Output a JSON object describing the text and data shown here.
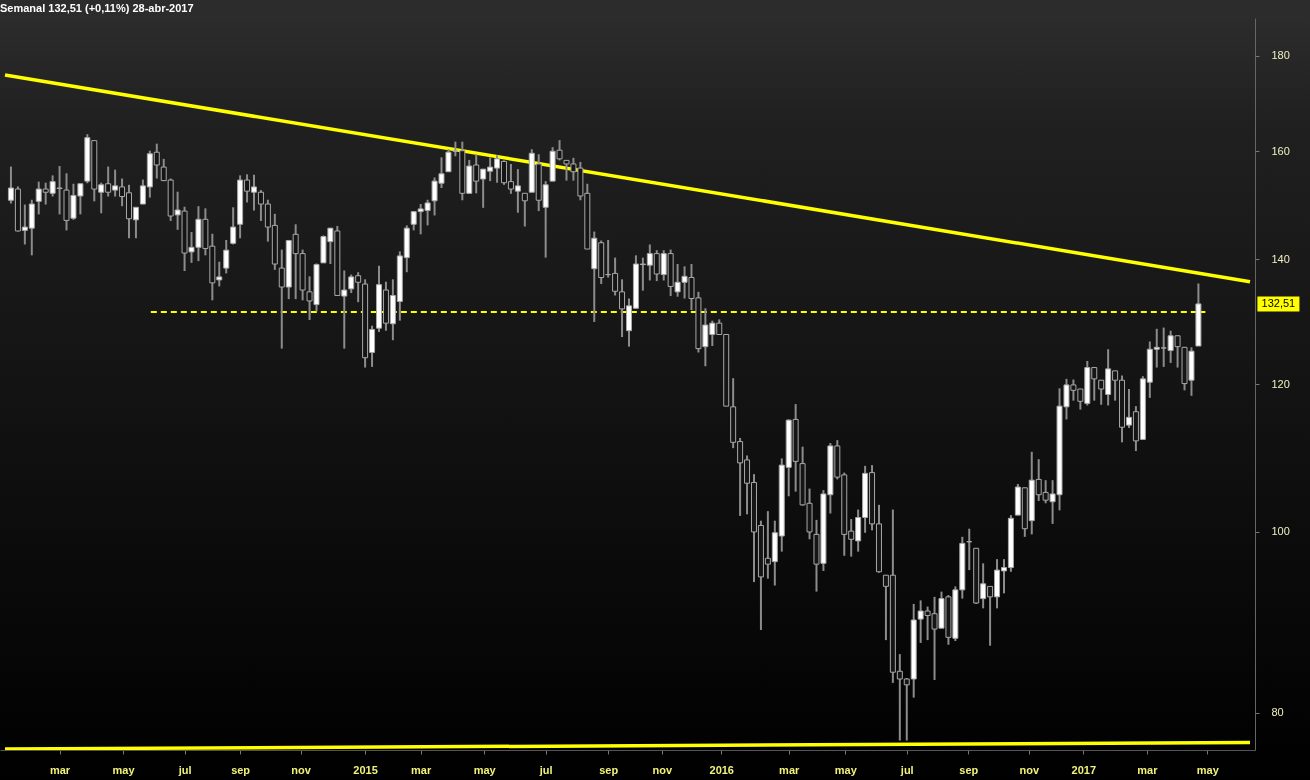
{
  "chart_data": {
    "type": "candlestick",
    "title": "Semanal   132,51 (+0,11%)   28-abr-2017",
    "log": true,
    "xlim": [
      "2014-01-11",
      "2017-06-19"
    ],
    "ylim": [
      76.4,
      188.6
    ],
    "yticks": [
      80,
      100,
      120,
      140,
      160,
      180
    ],
    "xticks": [
      {
        "value": "2014-03-07",
        "label": "mar"
      },
      {
        "value": "2014-05-10",
        "label": "may"
      },
      {
        "value": "2014-07-11",
        "label": "jul"
      },
      {
        "value": "2014-09-05",
        "label": "sep"
      },
      {
        "value": "2014-11-05",
        "label": "nov"
      },
      {
        "value": "2015-01-09",
        "label": "2015"
      },
      {
        "value": "2015-03-06",
        "label": "mar"
      },
      {
        "value": "2015-05-09",
        "label": "may"
      },
      {
        "value": "2015-07-10",
        "label": "jul"
      },
      {
        "value": "2015-09-11",
        "label": "sep"
      },
      {
        "value": "2015-11-04",
        "label": "nov"
      },
      {
        "value": "2016-01-03",
        "label": "2016"
      },
      {
        "value": "2016-03-11",
        "label": "mar"
      },
      {
        "value": "2016-05-07",
        "label": "may"
      },
      {
        "value": "2016-07-08",
        "label": "jul"
      },
      {
        "value": "2016-09-08",
        "label": "sep"
      },
      {
        "value": "2016-11-08",
        "label": "nov"
      },
      {
        "value": "2017-01-02",
        "label": "2017"
      },
      {
        "value": "2017-03-07",
        "label": "mar"
      },
      {
        "value": "2017-05-07",
        "label": "may"
      }
    ],
    "x": [
      "2014-01-17",
      "2014-01-24",
      "2014-01-31",
      "2014-02-07",
      "2014-02-14",
      "2014-02-21",
      "2014-02-28",
      "2014-03-07",
      "2014-03-14",
      "2014-03-21",
      "2014-03-28",
      "2014-04-04",
      "2014-04-11",
      "2014-04-18",
      "2014-04-25",
      "2014-05-02",
      "2014-05-09",
      "2014-05-16",
      "2014-05-23",
      "2014-05-30",
      "2014-06-06",
      "2014-06-13",
      "2014-06-20",
      "2014-06-27",
      "2014-07-04",
      "2014-07-11",
      "2014-07-18",
      "2014-07-25",
      "2014-08-01",
      "2014-08-08",
      "2014-08-15",
      "2014-08-22",
      "2014-08-29",
      "2014-09-05",
      "2014-09-12",
      "2014-09-19",
      "2014-09-26",
      "2014-10-03",
      "2014-10-10",
      "2014-10-17",
      "2014-10-24",
      "2014-10-31",
      "2014-11-07",
      "2014-11-14",
      "2014-11-21",
      "2014-11-28",
      "2014-12-05",
      "2014-12-12",
      "2014-12-19",
      "2014-12-26",
      "2015-01-02",
      "2015-01-09",
      "2015-01-16",
      "2015-01-23",
      "2015-01-30",
      "2015-02-06",
      "2015-02-13",
      "2015-02-20",
      "2015-02-27",
      "2015-03-06",
      "2015-03-13",
      "2015-03-20",
      "2015-03-27",
      "2015-04-03",
      "2015-04-10",
      "2015-04-17",
      "2015-04-24",
      "2015-05-01",
      "2015-05-08",
      "2015-05-15",
      "2015-05-22",
      "2015-05-29",
      "2015-06-05",
      "2015-06-12",
      "2015-06-19",
      "2015-06-26",
      "2015-07-03",
      "2015-07-10",
      "2015-07-17",
      "2015-07-24",
      "2015-07-31",
      "2015-08-07",
      "2015-08-14",
      "2015-08-21",
      "2015-08-28",
      "2015-09-04",
      "2015-09-11",
      "2015-09-18",
      "2015-09-25",
      "2015-10-02",
      "2015-10-09",
      "2015-10-16",
      "2015-10-23",
      "2015-10-30",
      "2015-11-06",
      "2015-11-13",
      "2015-11-20",
      "2015-11-27",
      "2015-12-04",
      "2015-12-11",
      "2015-12-18",
      "2015-12-25",
      "2016-01-01",
      "2016-01-08",
      "2016-01-15",
      "2016-01-22",
      "2016-01-29",
      "2016-02-05",
      "2016-02-12",
      "2016-02-19",
      "2016-02-26",
      "2016-03-04",
      "2016-03-11",
      "2016-03-18",
      "2016-03-25",
      "2016-04-01",
      "2016-04-08",
      "2016-04-15",
      "2016-04-22",
      "2016-04-29",
      "2016-05-06",
      "2016-05-13",
      "2016-05-20",
      "2016-05-27",
      "2016-06-03",
      "2016-06-10",
      "2016-06-17",
      "2016-06-24",
      "2016-07-01",
      "2016-07-08",
      "2016-07-15",
      "2016-07-22",
      "2016-07-29",
      "2016-08-05",
      "2016-08-12",
      "2016-08-19",
      "2016-08-26",
      "2016-09-02",
      "2016-09-09",
      "2016-09-16",
      "2016-09-23",
      "2016-09-30",
      "2016-10-07",
      "2016-10-14",
      "2016-10-21",
      "2016-10-28",
      "2016-11-04",
      "2016-11-11",
      "2016-11-18",
      "2016-11-25",
      "2016-12-02",
      "2016-12-09",
      "2016-12-16",
      "2016-12-23",
      "2016-12-30",
      "2017-01-06",
      "2017-01-13",
      "2017-01-20",
      "2017-01-27",
      "2017-02-03",
      "2017-02-10",
      "2017-02-17",
      "2017-02-24",
      "2017-03-03",
      "2017-03-10",
      "2017-03-17",
      "2017-03-24",
      "2017-03-31",
      "2017-04-07",
      "2017-04-14",
      "2017-04-21",
      "2017-04-28"
    ],
    "ohlc": [
      [
        150.6,
        157.0,
        150.0,
        152.9
      ],
      [
        152.7,
        153.2,
        144.9,
        145.0
      ],
      [
        145.1,
        149.8,
        142.6,
        145.7
      ],
      [
        145.5,
        150.7,
        140.7,
        149.9
      ],
      [
        150.4,
        154.1,
        148.0,
        152.7
      ],
      [
        152.7,
        153.9,
        149.8,
        152.1
      ],
      [
        151.9,
        155.3,
        151.3,
        154.1
      ],
      [
        152.8,
        157.1,
        148.0,
        152.9
      ],
      [
        152.5,
        155.7,
        145.1,
        146.9
      ],
      [
        147.3,
        153.7,
        147.0,
        151.5
      ],
      [
        151.4,
        153.7,
        148.0,
        153.7
      ],
      [
        154.2,
        163.4,
        153.8,
        162.7
      ],
      [
        162.1,
        162.1,
        150.4,
        152.7
      ],
      [
        152.1,
        153.9,
        148.2,
        153.5
      ],
      [
        153.7,
        157.0,
        151.3,
        152.1
      ],
      [
        152.5,
        156.4,
        151.3,
        153.3
      ],
      [
        153.1,
        154.7,
        149.5,
        151.3
      ],
      [
        152.0,
        153.5,
        143.7,
        147.2
      ],
      [
        147.0,
        149.3,
        143.7,
        149.3
      ],
      [
        149.9,
        154.5,
        149.9,
        153.3
      ],
      [
        153.1,
        160.1,
        151.1,
        159.5
      ],
      [
        159.8,
        161.5,
        154.7,
        157.3
      ],
      [
        156.9,
        158.5,
        154.2,
        154.3
      ],
      [
        154.4,
        154.7,
        146.8,
        147.7
      ],
      [
        147.9,
        152.2,
        145.2,
        148.8
      ],
      [
        148.6,
        149.4,
        138.0,
        141.1
      ],
      [
        141.3,
        144.8,
        139.4,
        142.1
      ],
      [
        142.1,
        149.5,
        139.7,
        147.1
      ],
      [
        147.1,
        149.1,
        140.7,
        141.9
      ],
      [
        142.3,
        144.5,
        133.1,
        136.0
      ],
      [
        136.5,
        139.6,
        135.4,
        137.0
      ],
      [
        138.5,
        143.4,
        137.6,
        141.6
      ],
      [
        142.8,
        149.3,
        142.6,
        145.7
      ],
      [
        146.2,
        155.3,
        143.7,
        154.4
      ],
      [
        154.4,
        155.5,
        150.2,
        152.3
      ],
      [
        152.1,
        155.4,
        148.7,
        153.1
      ],
      [
        152.1,
        152.5,
        146.8,
        149.9
      ],
      [
        149.9,
        150.7,
        143.1,
        145.7
      ],
      [
        146.0,
        148.1,
        138.2,
        139.2
      ],
      [
        138.5,
        141.7,
        125.4,
        135.3
      ],
      [
        135.3,
        143.4,
        133.3,
        143.3
      ],
      [
        144.4,
        146.2,
        133.3,
        141.0
      ],
      [
        141.0,
        141.7,
        133.1,
        134.8
      ],
      [
        134.5,
        137.1,
        129.9,
        133.0
      ],
      [
        132.4,
        139.3,
        131.3,
        139.1
      ],
      [
        139.4,
        144.2,
        139.4,
        144.0
      ],
      [
        143.1,
        145.5,
        139.2,
        145.5
      ],
      [
        145.0,
        145.9,
        133.9,
        133.9
      ],
      [
        133.8,
        138.1,
        125.4,
        134.8
      ],
      [
        135.0,
        137.4,
        134.3,
        137.0
      ],
      [
        137.2,
        137.8,
        132.8,
        136.1
      ],
      [
        135.8,
        136.6,
        122.5,
        124.0
      ],
      [
        124.8,
        129.0,
        122.6,
        128.4
      ],
      [
        128.6,
        138.9,
        128.0,
        135.7
      ],
      [
        134.8,
        136.2,
        128.2,
        129.4
      ],
      [
        129.3,
        136.6,
        126.7,
        133.9
      ],
      [
        132.9,
        141.4,
        129.8,
        140.6
      ],
      [
        140.3,
        146.0,
        137.8,
        145.5
      ],
      [
        146.2,
        148.5,
        145.1,
        148.5
      ],
      [
        148.5,
        149.9,
        144.4,
        149.0
      ],
      [
        148.7,
        150.7,
        146.0,
        150.1
      ],
      [
        150.5,
        154.9,
        147.8,
        154.2
      ],
      [
        153.8,
        158.8,
        152.9,
        155.6
      ],
      [
        156.0,
        160.4,
        156.0,
        159.8
      ],
      [
        160.0,
        161.9,
        159.0,
        160.1
      ],
      [
        160.1,
        161.9,
        150.6,
        151.9
      ],
      [
        151.9,
        158.3,
        151.8,
        157.1
      ],
      [
        157.3,
        159.4,
        151.9,
        154.2
      ],
      [
        154.6,
        156.5,
        149.2,
        156.5
      ],
      [
        156.1,
        158.8,
        154.2,
        156.9
      ],
      [
        156.7,
        159.2,
        153.9,
        158.5
      ],
      [
        158.0,
        158.2,
        153.5,
        153.9
      ],
      [
        154.1,
        157.5,
        151.8,
        152.7
      ],
      [
        152.3,
        156.5,
        148.3,
        153.3
      ],
      [
        151.9,
        151.9,
        145.8,
        150.5
      ],
      [
        152.1,
        160.4,
        152.1,
        159.6
      ],
      [
        157.5,
        159.4,
        148.6,
        150.6
      ],
      [
        149.3,
        154.2,
        140.3,
        153.5
      ],
      [
        154.2,
        160.8,
        154.2,
        160.0
      ],
      [
        160.2,
        162.2,
        158.2,
        158.5
      ],
      [
        158.2,
        158.2,
        154.3,
        157.5
      ],
      [
        157.5,
        158.7,
        154.3,
        156.0
      ],
      [
        156.7,
        157.9,
        150.6,
        151.4
      ],
      [
        151.9,
        153.7,
        141.8,
        141.8
      ],
      [
        138.4,
        144.9,
        129.6,
        143.7
      ],
      [
        142.9,
        143.3,
        135.8,
        136.9
      ],
      [
        137.4,
        143.4,
        136.9,
        137.4
      ],
      [
        137.6,
        140.3,
        133.9,
        134.6
      ],
      [
        134.5,
        136.6,
        127.2,
        131.7
      ],
      [
        128.2,
        133.4,
        125.7,
        132.2
      ],
      [
        131.8,
        140.7,
        131.8,
        139.2
      ],
      [
        139.1,
        140.3,
        134.7,
        139.2
      ],
      [
        139.0,
        142.6,
        136.4,
        141.0
      ],
      [
        141.0,
        141.6,
        136.3,
        137.5
      ],
      [
        137.4,
        141.6,
        136.4,
        141.0
      ],
      [
        141.0,
        141.7,
        133.8,
        135.4
      ],
      [
        134.5,
        139.2,
        133.7,
        136.1
      ],
      [
        136.1,
        138.8,
        133.4,
        137.1
      ],
      [
        136.9,
        139.2,
        131.5,
        133.4
      ],
      [
        133.5,
        134.5,
        124.8,
        125.4
      ],
      [
        125.7,
        131.8,
        122.7,
        129.1
      ],
      [
        127.6,
        129.8,
        125.8,
        129.4
      ],
      [
        129.4,
        130.0,
        127.6,
        127.6
      ],
      [
        127.6,
        127.6,
        116.8,
        116.8
      ],
      [
        116.7,
        120.9,
        110.9,
        111.7
      ],
      [
        111.8,
        112.3,
        102.0,
        108.9
      ],
      [
        109.3,
        109.9,
        102.2,
        106.2
      ],
      [
        106.3,
        107.4,
        94.0,
        100.0
      ],
      [
        100.8,
        101.4,
        88.6,
        94.6
      ],
      [
        96.8,
        102.6,
        94.4,
        96.1
      ],
      [
        96.4,
        101.4,
        93.6,
        99.9
      ],
      [
        99.5,
        109.5,
        97.6,
        108.6
      ],
      [
        108.3,
        114.9,
        104.5,
        114.8
      ],
      [
        114.9,
        117.1,
        105.1,
        109.1
      ],
      [
        108.8,
        111.1,
        103.3,
        103.4
      ],
      [
        103.6,
        105.5,
        99.1,
        100.0
      ],
      [
        99.7,
        101.5,
        92.9,
        96.1
      ],
      [
        96.2,
        105.3,
        95.3,
        104.8
      ],
      [
        104.7,
        111.6,
        102.3,
        111.2
      ],
      [
        111.2,
        112.0,
        106.7,
        107.0
      ],
      [
        107.3,
        107.6,
        97.1,
        99.7
      ],
      [
        100.1,
        101.6,
        97.0,
        99.1
      ],
      [
        98.9,
        102.8,
        97.6,
        101.8
      ],
      [
        101.8,
        108.5,
        99.9,
        107.5
      ],
      [
        107.6,
        108.6,
        100.2,
        101.0
      ],
      [
        101.0,
        103.4,
        95.1,
        95.2
      ],
      [
        94.8,
        94.8,
        87.5,
        93.5
      ],
      [
        94.8,
        102.8,
        83.0,
        84.1
      ],
      [
        84.2,
        86.0,
        77.3,
        83.4
      ],
      [
        83.4,
        83.5,
        77.3,
        82.8
      ],
      [
        83.4,
        91.5,
        81.5,
        89.7
      ],
      [
        89.8,
        91.9,
        87.2,
        90.7
      ],
      [
        90.7,
        91.2,
        87.5,
        90.2
      ],
      [
        90.4,
        92.3,
        83.3,
        88.7
      ],
      [
        88.8,
        92.9,
        88.8,
        92.1
      ],
      [
        92.3,
        92.5,
        87.0,
        87.8
      ],
      [
        87.7,
        93.5,
        87.4,
        93.1
      ],
      [
        93.1,
        99.4,
        92.1,
        98.6
      ],
      [
        98.8,
        100.4,
        95.4,
        98.8
      ],
      [
        98.0,
        98.0,
        91.5,
        91.6
      ],
      [
        92.1,
        96.2,
        91.0,
        93.8
      ],
      [
        93.5,
        93.5,
        86.9,
        92.3
      ],
      [
        92.3,
        96.7,
        91.0,
        95.4
      ],
      [
        95.3,
        96.7,
        92.7,
        95.7
      ],
      [
        95.7,
        102.1,
        95.2,
        101.7
      ],
      [
        102.1,
        106.1,
        102.1,
        105.7
      ],
      [
        105.6,
        105.6,
        99.4,
        100.4
      ],
      [
        101.4,
        110.4,
        99.7,
        106.6
      ],
      [
        106.7,
        109.4,
        103.9,
        104.7
      ],
      [
        105.0,
        106.6,
        103.6,
        104.0
      ],
      [
        103.8,
        106.6,
        101.0,
        104.8
      ],
      [
        104.7,
        119.4,
        102.7,
        116.8
      ],
      [
        116.7,
        120.8,
        114.9,
        119.9
      ],
      [
        119.9,
        120.7,
        117.6,
        119.1
      ],
      [
        119.3,
        119.3,
        116.3,
        117.5
      ],
      [
        117.2,
        123.5,
        116.9,
        122.5
      ],
      [
        122.5,
        122.6,
        117.6,
        120.8
      ],
      [
        120.6,
        120.6,
        117.0,
        119.3
      ],
      [
        118.5,
        125.3,
        116.9,
        122.3
      ],
      [
        122.0,
        122.0,
        117.6,
        120.6
      ],
      [
        120.6,
        121.3,
        111.7,
        113.8
      ],
      [
        114.1,
        119.3,
        113.7,
        115.2
      ],
      [
        116.0,
        116.8,
        110.5,
        111.9
      ],
      [
        112.1,
        121.2,
        112.1,
        120.8
      ],
      [
        120.3,
        126.5,
        118.0,
        125.3
      ],
      [
        125.3,
        128.5,
        122.5,
        125.6
      ],
      [
        125.5,
        128.7,
        122.6,
        125.5
      ],
      [
        125.1,
        128.2,
        123.2,
        127.4
      ],
      [
        127.4,
        127.4,
        122.5,
        125.7
      ],
      [
        125.6,
        125.6,
        119.1,
        120.1
      ],
      [
        120.6,
        125.6,
        118.3,
        125.0
      ],
      [
        125.8,
        135.9,
        125.8,
        132.51
      ]
    ],
    "series": [
      {
        "type": "line",
        "color": "#ffff00",
        "x": [
          "2014-01-11",
          "2017-06-19"
        ],
        "values": [
          175.8,
          136.2
        ]
      },
      {
        "type": "line",
        "color": "#ffff00",
        "x": [
          "2014-01-11",
          "2017-06-19"
        ],
        "values": [
          76.5,
          77.1
        ]
      },
      {
        "type": "line",
        "color": "#ffff00",
        "line_style": "dashed",
        "x": [
          "2014-06-07",
          "2017-05-05"
        ],
        "values": [
          131.2,
          131.2
        ]
      }
    ],
    "annotations": [
      "132,51"
    ]
  }
}
